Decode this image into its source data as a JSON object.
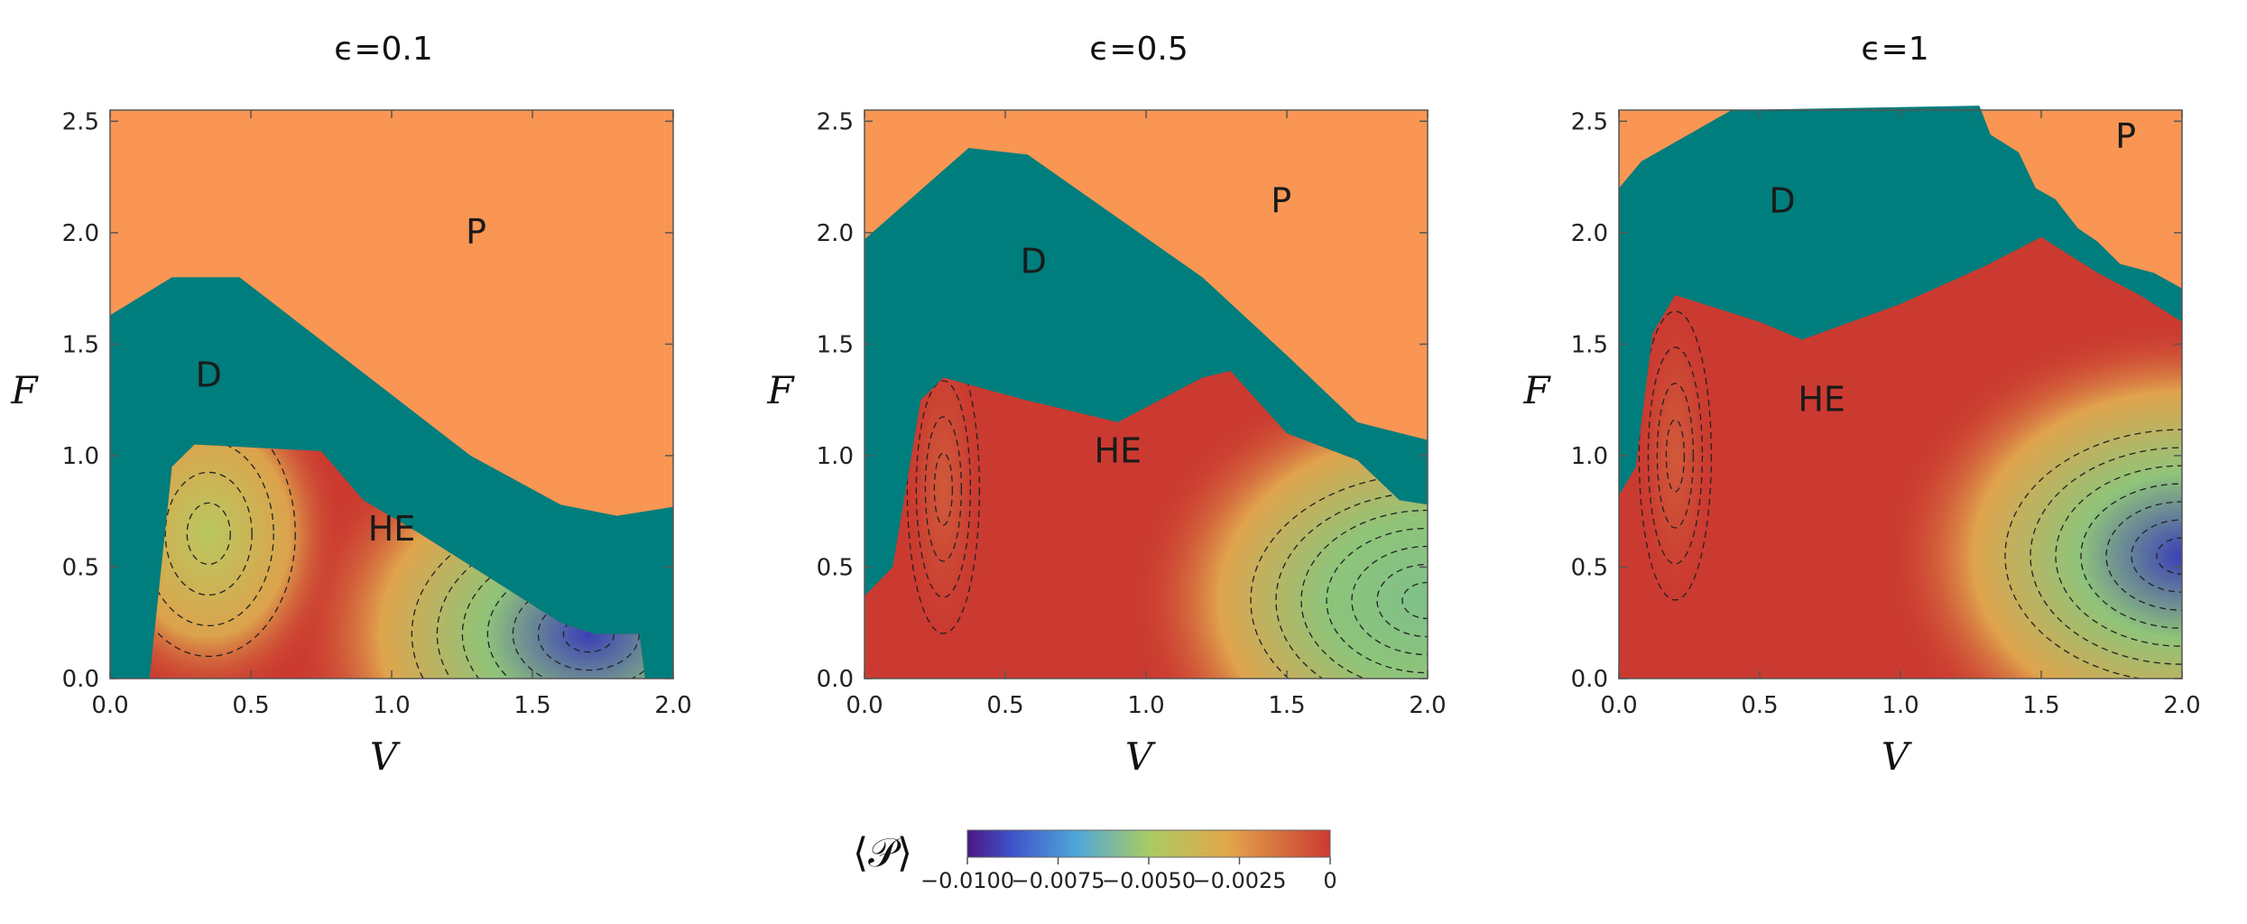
{
  "chart_data": [
    {
      "type": "heatmap",
      "title": "ϵ=0.1",
      "xlabel": "V",
      "ylabel": "F",
      "xlim": [
        0,
        2.0
      ],
      "ylim": [
        0,
        2.55
      ],
      "xticks": [
        "0.0",
        "0.5",
        "1.0",
        "1.5",
        "2.0"
      ],
      "yticks": [
        "0.0",
        "0.5",
        "1.0",
        "1.5",
        "2.0",
        "2.5"
      ],
      "regions": [
        {
          "label": "P",
          "at": [
            1.3,
            1.95
          ]
        },
        {
          "label": "D",
          "at": [
            0.35,
            1.31
          ]
        },
        {
          "label": "HE",
          "at": [
            1.0,
            0.62
          ]
        }
      ],
      "D_upper_boundary": [
        [
          0.0,
          1.63
        ],
        [
          0.22,
          1.8
        ],
        [
          0.46,
          1.8
        ],
        [
          1.28,
          1.0
        ],
        [
          1.6,
          0.78
        ],
        [
          1.8,
          0.73
        ],
        [
          2.0,
          0.77
        ]
      ],
      "HE_upper_boundary": [
        [
          0.14,
          0.0
        ],
        [
          0.22,
          0.95
        ],
        [
          0.3,
          1.05
        ],
        [
          0.75,
          1.02
        ],
        [
          0.9,
          0.8
        ],
        [
          1.1,
          0.65
        ],
        [
          1.35,
          0.45
        ],
        [
          1.6,
          0.25
        ],
        [
          1.72,
          0.2
        ],
        [
          1.88,
          0.2
        ],
        [
          1.9,
          0.0
        ]
      ],
      "P_minimum": {
        "V": 1.7,
        "F": 0.2,
        "value": -0.01
      },
      "P_local_min": {
        "V": 0.35,
        "F": 0.65,
        "value": -0.005
      }
    },
    {
      "type": "heatmap",
      "title": "ϵ=0.5",
      "xlabel": "V",
      "ylabel": "F",
      "xlim": [
        0,
        2.0
      ],
      "ylim": [
        0,
        2.55
      ],
      "xticks": [
        "0.0",
        "0.5",
        "1.0",
        "1.5",
        "2.0"
      ],
      "yticks": [
        "0.0",
        "0.5",
        "1.0",
        "1.5",
        "2.0",
        "2.5"
      ],
      "regions": [
        {
          "label": "P",
          "at": [
            1.48,
            2.09
          ]
        },
        {
          "label": "D",
          "at": [
            0.6,
            1.82
          ]
        },
        {
          "label": "HE",
          "at": [
            0.9,
            0.97
          ]
        }
      ],
      "D_upper_boundary": [
        [
          0.0,
          1.97
        ],
        [
          0.37,
          2.38
        ],
        [
          0.58,
          2.35
        ],
        [
          1.2,
          1.8
        ],
        [
          1.5,
          1.45
        ],
        [
          1.75,
          1.15
        ],
        [
          2.0,
          1.07
        ]
      ],
      "HE_upper_boundary": [
        [
          0.0,
          0.37
        ],
        [
          0.1,
          0.5
        ],
        [
          0.2,
          1.25
        ],
        [
          0.28,
          1.35
        ],
        [
          0.57,
          1.25
        ],
        [
          0.9,
          1.15
        ],
        [
          1.2,
          1.35
        ],
        [
          1.3,
          1.38
        ],
        [
          1.5,
          1.1
        ],
        [
          1.75,
          0.98
        ],
        [
          1.9,
          0.8
        ],
        [
          2.0,
          0.78
        ]
      ],
      "P_minimum": {
        "V": 2.0,
        "F": 0.35,
        "value": -0.006
      },
      "P_local_min": {
        "V": 0.28,
        "F": 0.85,
        "value": -0.0008
      }
    },
    {
      "type": "heatmap",
      "title": "ϵ=1",
      "xlabel": "V",
      "ylabel": "F",
      "xlim": [
        0,
        2.0
      ],
      "ylim": [
        0,
        2.55
      ],
      "xticks": [
        "0.0",
        "0.5",
        "1.0",
        "1.5",
        "2.0"
      ],
      "yticks": [
        "0.0",
        "0.5",
        "1.0",
        "1.5",
        "2.0",
        "2.5"
      ],
      "regions": [
        {
          "label": "P",
          "at": [
            1.8,
            2.38
          ]
        },
        {
          "label": "D",
          "at": [
            0.58,
            2.09
          ]
        },
        {
          "label": "HE",
          "at": [
            0.72,
            1.2
          ]
        }
      ],
      "D_upper_boundary": [
        [
          0.0,
          2.2
        ],
        [
          0.08,
          2.32
        ],
        [
          0.4,
          2.55
        ],
        [
          1.28,
          2.57
        ],
        [
          1.32,
          2.44
        ],
        [
          1.42,
          2.36
        ],
        [
          1.48,
          2.2
        ],
        [
          1.55,
          2.15
        ],
        [
          1.63,
          2.02
        ],
        [
          1.7,
          1.96
        ],
        [
          1.78,
          1.86
        ],
        [
          1.9,
          1.82
        ],
        [
          2.0,
          1.75
        ]
      ],
      "HE_upper_boundary": [
        [
          0.0,
          0.82
        ],
        [
          0.06,
          0.95
        ],
        [
          0.12,
          1.55
        ],
        [
          0.2,
          1.72
        ],
        [
          0.5,
          1.6
        ],
        [
          0.65,
          1.52
        ],
        [
          1.0,
          1.68
        ],
        [
          1.3,
          1.85
        ],
        [
          1.5,
          1.98
        ],
        [
          1.7,
          1.82
        ],
        [
          1.85,
          1.72
        ],
        [
          2.0,
          1.6
        ]
      ],
      "P_minimum": {
        "V": 2.0,
        "F": 0.55,
        "value": -0.01
      },
      "P_local_min": {
        "V": 0.2,
        "F": 1.0,
        "value": -0.0005
      }
    }
  ],
  "colorbar": {
    "label": "⟨𝒫⟩",
    "range": [
      -0.01,
      0
    ],
    "ticks": [
      "−0.0100",
      "−0.0075",
      "−0.0050",
      "−0.0025",
      "0"
    ]
  },
  "colors": {
    "P": "#f99653",
    "D": "#007d7d",
    "HE": "#cb3a30"
  }
}
